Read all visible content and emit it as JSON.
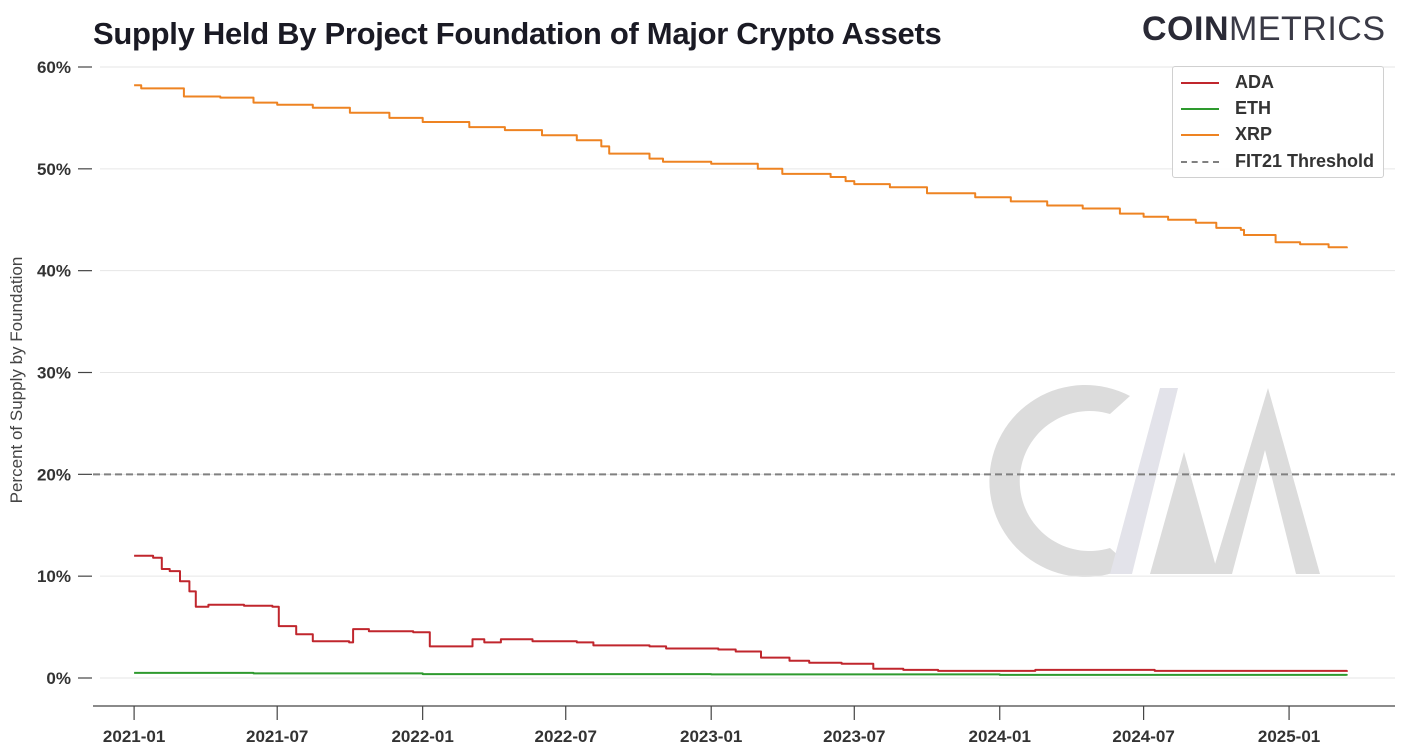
{
  "header": {
    "title": "Supply Held By Project Foundation of Major Crypto Assets",
    "logo_bold": "COIN",
    "logo_light": "METRICS"
  },
  "chart_data": {
    "type": "line",
    "title": "Supply Held By Project Foundation of Major Crypto Assets",
    "xlabel": "",
    "ylabel": "Percent of Supply by Foundation",
    "xlim": [
      "2020-11-10",
      "2025-05-15"
    ],
    "ylim": [
      0,
      60
    ],
    "y_ticks": [
      "0%",
      "10%",
      "20%",
      "30%",
      "40%",
      "50%",
      "60%"
    ],
    "x_ticks": [
      "2021-01",
      "2021-07",
      "2022-01",
      "2022-07",
      "2023-01",
      "2023-07",
      "2024-01",
      "2024-07",
      "2025-01"
    ],
    "grid": true,
    "legend_position": "top-right",
    "threshold": {
      "name": "FIT21 Threshold",
      "value": 20,
      "color": "#808080",
      "style": "dashed"
    },
    "series": [
      {
        "name": "ADA",
        "color": "#c0262d",
        "points": [
          [
            "2021-01-01",
            12.0
          ],
          [
            "2021-01-25",
            11.8
          ],
          [
            "2021-02-05",
            10.7
          ],
          [
            "2021-02-15",
            10.5
          ],
          [
            "2021-02-28",
            9.5
          ],
          [
            "2021-03-12",
            8.5
          ],
          [
            "2021-03-20",
            7.0
          ],
          [
            "2021-04-05",
            7.2
          ],
          [
            "2021-05-20",
            7.1
          ],
          [
            "2021-06-25",
            7.0
          ],
          [
            "2021-07-03",
            5.1
          ],
          [
            "2021-07-25",
            4.3
          ],
          [
            "2021-08-15",
            3.6
          ],
          [
            "2021-09-30",
            3.5
          ],
          [
            "2021-10-05",
            4.8
          ],
          [
            "2021-10-25",
            4.6
          ],
          [
            "2021-12-20",
            4.5
          ],
          [
            "2022-01-10",
            3.1
          ],
          [
            "2022-02-25",
            3.1
          ],
          [
            "2022-03-05",
            3.8
          ],
          [
            "2022-03-20",
            3.5
          ],
          [
            "2022-04-10",
            3.8
          ],
          [
            "2022-05-20",
            3.6
          ],
          [
            "2022-07-15",
            3.5
          ],
          [
            "2022-08-05",
            3.2
          ],
          [
            "2022-10-15",
            3.1
          ],
          [
            "2022-11-05",
            2.9
          ],
          [
            "2023-01-10",
            2.8
          ],
          [
            "2023-02-01",
            2.6
          ],
          [
            "2023-03-05",
            2.0
          ],
          [
            "2023-04-10",
            1.7
          ],
          [
            "2023-05-05",
            1.5
          ],
          [
            "2023-06-15",
            1.4
          ],
          [
            "2023-07-25",
            0.9
          ],
          [
            "2023-09-01",
            0.8
          ],
          [
            "2023-10-15",
            0.7
          ],
          [
            "2024-02-15",
            0.8
          ],
          [
            "2024-07-15",
            0.7
          ],
          [
            "2025-03-15",
            0.6
          ]
        ]
      },
      {
        "name": "ETH",
        "color": "#2e9a2e",
        "points": [
          [
            "2021-01-01",
            0.5
          ],
          [
            "2021-06-01",
            0.45
          ],
          [
            "2022-01-01",
            0.38
          ],
          [
            "2023-01-01",
            0.35
          ],
          [
            "2024-01-01",
            0.3
          ],
          [
            "2025-03-15",
            0.25
          ]
        ]
      },
      {
        "name": "XRP",
        "color": "#ee8322",
        "points": [
          [
            "2021-01-01",
            58.2
          ],
          [
            "2021-01-10",
            57.9
          ],
          [
            "2021-03-01",
            57.9
          ],
          [
            "2021-03-05",
            57.1
          ],
          [
            "2021-04-20",
            57.0
          ],
          [
            "2021-06-01",
            56.5
          ],
          [
            "2021-07-01",
            56.3
          ],
          [
            "2021-08-15",
            56.0
          ],
          [
            "2021-10-01",
            55.5
          ],
          [
            "2021-11-20",
            55.0
          ],
          [
            "2022-01-01",
            54.6
          ],
          [
            "2022-03-01",
            54.1
          ],
          [
            "2022-04-15",
            53.8
          ],
          [
            "2022-06-01",
            53.3
          ],
          [
            "2022-07-15",
            52.8
          ],
          [
            "2022-08-15",
            52.2
          ],
          [
            "2022-08-25",
            51.5
          ],
          [
            "2022-10-15",
            51.0
          ],
          [
            "2022-11-01",
            50.7
          ],
          [
            "2023-01-01",
            50.5
          ],
          [
            "2023-03-01",
            50.0
          ],
          [
            "2023-04-01",
            49.5
          ],
          [
            "2023-06-01",
            49.2
          ],
          [
            "2023-06-20",
            48.8
          ],
          [
            "2023-07-01",
            48.5
          ],
          [
            "2023-08-15",
            48.2
          ],
          [
            "2023-10-01",
            47.6
          ],
          [
            "2023-12-01",
            47.2
          ],
          [
            "2024-01-15",
            46.8
          ],
          [
            "2024-03-01",
            46.4
          ],
          [
            "2024-04-15",
            46.1
          ],
          [
            "2024-06-01",
            45.6
          ],
          [
            "2024-07-01",
            45.3
          ],
          [
            "2024-08-01",
            45.0
          ],
          [
            "2024-09-05",
            44.7
          ],
          [
            "2024-10-01",
            44.2
          ],
          [
            "2024-11-01",
            44.0
          ],
          [
            "2024-11-05",
            43.5
          ],
          [
            "2024-12-10",
            43.5
          ],
          [
            "2024-12-15",
            42.8
          ],
          [
            "2025-01-15",
            42.6
          ],
          [
            "2025-02-20",
            42.3
          ],
          [
            "2025-03-15",
            42.2
          ]
        ]
      }
    ]
  }
}
